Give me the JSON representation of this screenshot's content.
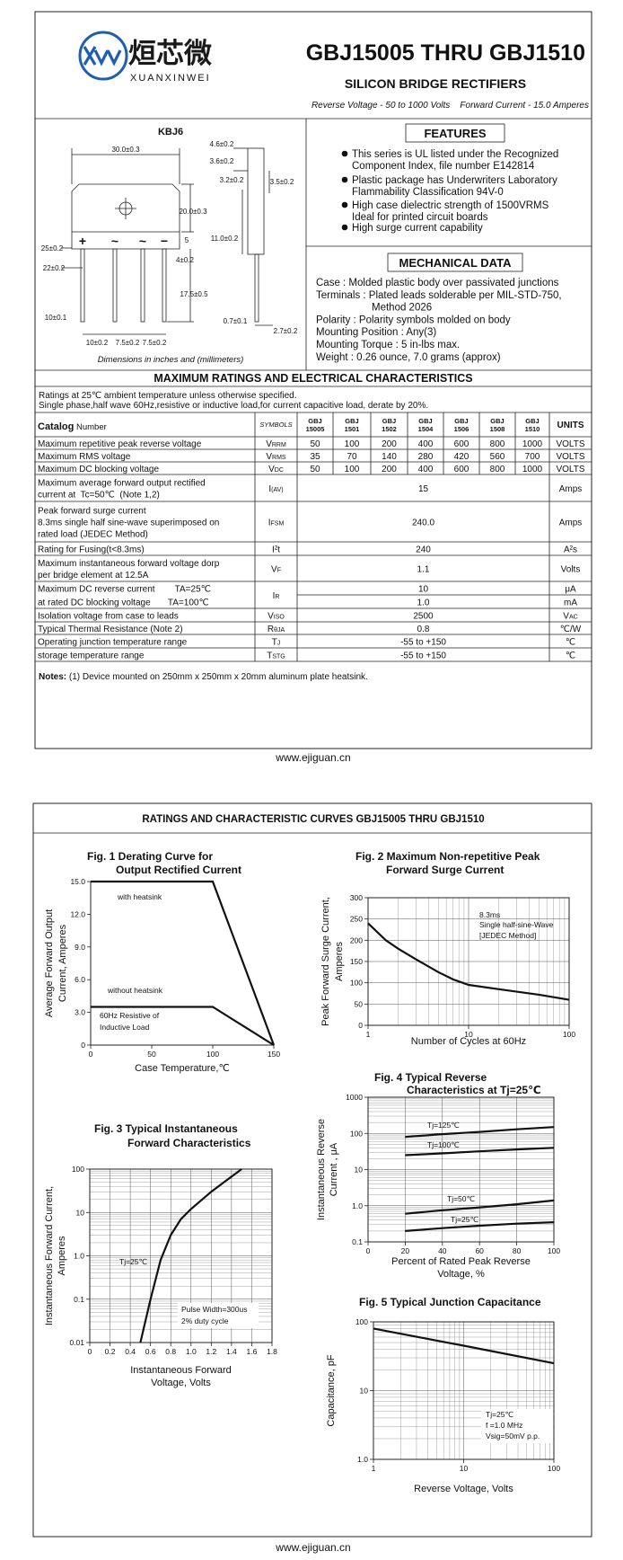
{
  "header": {
    "brand_cn": "烜芯微",
    "brand_en": "XUANXINWEI",
    "title": "GBJ15005 THRU GBJ1510",
    "subtitle": "SILICON BRIDGE RECTIFIERS",
    "ratings_line": "Reverse Voltage - 50 to 1000 Volts    Forward Current - 15.0 Amperes"
  },
  "package": {
    "name": "KBJ6",
    "dimensions": [
      "30.0±0.3",
      "20.0±0.3",
      "25±0.2",
      "22±0.2",
      "10±0.1",
      "10±0.2",
      "7.5±0.2",
      "7.5±0.2",
      "4±0.2",
      "5",
      "17.5±0.5",
      "11.0±0.2",
      "4.6±0.2",
      "3.6±0.2",
      "3.2±0.2",
      "3.5±0.2",
      "0.7±0.1",
      "2.7±0.2"
    ],
    "terminal_marks": [
      "+",
      "~",
      "~",
      "−"
    ],
    "caption": "Dimensions in inches and (millimeters)"
  },
  "features": {
    "title": "FEATURES",
    "items": [
      [
        "This series is UL listed under the Recognized",
        "Component Index, file number E142814"
      ],
      [
        "Plastic package has Underwriters Laboratory",
        "Flammability Classification 94V-0"
      ],
      [
        "High case dielectric strength of 1500VRMS",
        "Ideal for printed circuit boards"
      ],
      [
        "High surge current capability"
      ]
    ]
  },
  "mechanical": {
    "title": "MECHANICAL DATA",
    "lines": [
      "Case : Molded plastic body over passivated junctions",
      "Terminals : Plated leads solderable per MIL-STD-750,",
      "Method 2026",
      "Polarity : Polarity symbols molded on body",
      "Mounting Position : Any(3)",
      "Mounting Torque : 5 in-lbs max.",
      "Weight : 0.26 ounce, 7.0 grams (approx)"
    ]
  },
  "ratings": {
    "title": "MAXIMUM RATINGS AND ELECTRICAL CHARACTERISTICS",
    "conditions": [
      "Ratings at 25℃ ambient temperature unless otherwise specified.",
      "Single phase,half wave 60Hz,resistive or inductive load,for current capacitive load, derate by 20%."
    ],
    "table": {
      "header": {
        "catalog": "Catalog",
        "number": "Number",
        "symbols": "SYMBOLS",
        "parts": [
          [
            "GBJ",
            "15005"
          ],
          [
            "GBJ",
            "1501"
          ],
          [
            "GBJ",
            "1502"
          ],
          [
            "GBJ",
            "1504"
          ],
          [
            "GBJ",
            "1506"
          ],
          [
            "GBJ",
            "1508"
          ],
          [
            "GBJ",
            "1510"
          ]
        ],
        "units": "UNITS"
      },
      "rows": [
        {
          "desc": [
            "Maximum repetitive peak reverse voltage"
          ],
          "sym": "V",
          "sym_sub": "RRM",
          "values": [
            "50",
            "100",
            "200",
            "400",
            "600",
            "800",
            "1000"
          ],
          "units": [
            "VOLTS"
          ]
        },
        {
          "desc": [
            "Maximum RMS voltage"
          ],
          "sym": "V",
          "sym_sub": "RMS",
          "values": [
            "35",
            "70",
            "140",
            "280",
            "420",
            "560",
            "700"
          ],
          "units": [
            "VOLTS"
          ]
        },
        {
          "desc": [
            "Maximum DC blocking voltage"
          ],
          "sym": "V",
          "sym_sub": "DC",
          "values": [
            "50",
            "100",
            "200",
            "400",
            "600",
            "800",
            "1000"
          ],
          "units": [
            "VOLTS"
          ]
        },
        {
          "desc": [
            "Maximum average forward output rectified",
            "current at  Tc=50℃  (Note 1,2)"
          ],
          "sym": "I",
          "sym_sub": "(AV)",
          "values": [
            "15"
          ],
          "units": [
            "Amps"
          ]
        },
        {
          "desc": [
            "Peak forward surge current",
            "8.3ms single half sine-wave superimposed on",
            "rated load (JEDEC Method)"
          ],
          "sym": "I",
          "sym_sub": "FSM",
          "values": [
            "240.0"
          ],
          "units": [
            "Amps"
          ]
        },
        {
          "desc": [
            "Rating for Fusing(t<8.3ms)"
          ],
          "sym": "I²t",
          "values": [
            "240"
          ],
          "units": [
            "A²s"
          ]
        },
        {
          "desc": [
            "Maximum instantaneous forward voltage dorp",
            "per bridge element at 12.5A"
          ],
          "sym": "V",
          "sym_sub": "F",
          "values": [
            "1.1"
          ],
          "units": [
            "Volts"
          ]
        },
        {
          "desc": [
            "Maximum DC reverse current        TA=25℃",
            "at rated DC blocking voltage       TA=100℃"
          ],
          "sym": "I",
          "sym_sub": "R",
          "values": [
            "10",
            "1.0"
          ],
          "units": [
            "μA",
            "mA"
          ]
        },
        {
          "desc": [
            "Isolation voltage from case to leads"
          ],
          "sym": "V",
          "sym_sub": "ISO",
          "values": [
            "2500"
          ],
          "units": [
            "V"
          ],
          "unit_sub": "AC"
        },
        {
          "desc": [
            "Typical Thermal Resistance (Note 2)"
          ],
          "sym": "R",
          "sym_sub": "θJA",
          "values": [
            "0.8"
          ],
          "units": [
            "℃/W"
          ]
        },
        {
          "desc": [
            "Operating junction temperature range"
          ],
          "sym": "T",
          "sym_sub": "J",
          "values": [
            "-55 to +150"
          ],
          "units": [
            "℃"
          ]
        },
        {
          "desc": [
            "storage temperature range"
          ],
          "sym": "T",
          "sym_sub": "STG",
          "values": [
            "-55 to +150"
          ],
          "units": [
            "℃"
          ]
        }
      ]
    }
  },
  "notes": {
    "label": "Notes:",
    "text": " (1) Device mounted on 250mm x 250mm x 20mm aluminum plate heatsink."
  },
  "footers": [
    "www.ejiguan.cn",
    "www.ejiguan.cn"
  ],
  "curves_title": "RATINGS AND CHARACTERISTIC CURVES GBJ15005 THRU GBJ1510",
  "chart_data": [
    {
      "type": "line",
      "title": [
        "Fig. 1 Derating Curve for",
        "Output Rectified Current"
      ],
      "xlabel": [
        "Case Temperature,℃"
      ],
      "ylabel": [
        "Average Forward Output",
        "Current, Amperes"
      ],
      "xlim": [
        0,
        150
      ],
      "ylim": [
        0,
        15
      ],
      "xticks": [
        0,
        50,
        100,
        150
      ],
      "yticks": [
        0,
        {
          "value": 3,
          "label": "3.0"
        },
        {
          "value": 6,
          "label": "6.0"
        },
        {
          "value": 9,
          "label": "9.0"
        },
        {
          "value": 12,
          "label": "12.0"
        },
        {
          "value": 15,
          "label": "15.0"
        }
      ],
      "grid": false,
      "frame": "axes",
      "series": [
        {
          "name": "with heatsink",
          "color": "#111111",
          "x": [
            0,
            100,
            150
          ],
          "values": [
            15,
            15,
            0
          ]
        },
        {
          "name": "without heatsink",
          "color": "#111111",
          "x": [
            0,
            100,
            150
          ],
          "values": [
            3.5,
            3.5,
            0
          ]
        }
      ],
      "annotations": [
        "60Hz Resistive of",
        "Inductive Load"
      ]
    },
    {
      "type": "line",
      "title": [
        "Fig. 2 Maximum Non-repetitive Peak",
        "Forward Surge Current"
      ],
      "xlabel": [
        "Number of Cycles at 60Hz"
      ],
      "ylabel": [
        "Peak Forward Surge Current,",
        "Amperes"
      ],
      "xlim": [
        1,
        100
      ],
      "ylim": [
        0,
        300
      ],
      "xscale": "log",
      "xticks": [
        1,
        10,
        100
      ],
      "yticks": [
        0,
        50,
        100,
        150,
        200,
        250,
        300
      ],
      "grid": true,
      "frame": "box",
      "series": [
        {
          "color": "#111111",
          "x": [
            1,
            1.5,
            2,
            3,
            5,
            7,
            10,
            20,
            50,
            100
          ],
          "values": [
            240,
            200,
            180,
            155,
            125,
            108,
            95,
            85,
            72,
            60
          ]
        }
      ],
      "annotations": [
        "8.3ms",
        "Single half-sine-Wave",
        "[JEDEC Method]"
      ]
    },
    {
      "type": "line",
      "title": [
        "Fig. 3 Typical Instantaneous",
        "Forward Characteristics"
      ],
      "xlabel": [
        "Instantaneous Forward",
        "Voltage, Volts"
      ],
      "ylabel": [
        "Instantaneous Forward Current,",
        "Amperes"
      ],
      "xlim": [
        0,
        1.8
      ],
      "ylim": [
        0.01,
        100
      ],
      "yscale": "log",
      "xticks": [
        0,
        0.2,
        0.4,
        0.6,
        0.8,
        {
          "value": 1,
          "label": "1.0"
        },
        1.2,
        1.4,
        1.6,
        1.8
      ],
      "yticks": [
        0.01,
        0.1,
        {
          "value": 1,
          "label": "1.0"
        },
        10,
        100
      ],
      "grid": true,
      "frame": "box",
      "series": [
        {
          "name": "Tj=25℃",
          "color": "#111111",
          "x": [
            0.5,
            0.6,
            0.7,
            0.8,
            0.9,
            1.0,
            1.2,
            1.5
          ],
          "values": [
            0.01,
            0.1,
            0.8,
            3,
            7,
            12,
            30,
            100
          ]
        }
      ],
      "annotations": [
        "Pulse Width=300us",
        "2% duty cycle"
      ]
    },
    {
      "type": "line",
      "title": [
        "Fig. 4 Typical Reverse",
        "Characteristics at Tj=25℃"
      ],
      "xlabel": [
        "Percent of Rated Peak Reverse",
        "Voltage, %"
      ],
      "ylabel": [
        "Instantaneous Reverse",
        "Current , μA"
      ],
      "xlim": [
        0,
        100
      ],
      "ylim": [
        0.1,
        1000
      ],
      "yscale": "log",
      "xticks": [
        0,
        20,
        40,
        60,
        80,
        100
      ],
      "yticks": [
        0.1,
        {
          "value": 1,
          "label": "1.0"
        },
        10,
        100,
        1000
      ],
      "grid": true,
      "frame": "box",
      "series": [
        {
          "name": "Tj=125℃",
          "color": "#111111",
          "x": [
            20,
            40,
            60,
            80,
            100
          ],
          "values": [
            80,
            95,
            110,
            130,
            150
          ]
        },
        {
          "name": "Tj=100℃",
          "color": "#111111",
          "x": [
            20,
            40,
            60,
            80,
            100
          ],
          "values": [
            25,
            28,
            32,
            36,
            40
          ]
        },
        {
          "name": "Tj=50℃",
          "color": "#111111",
          "x": [
            20,
            40,
            60,
            80,
            100
          ],
          "values": [
            0.6,
            0.75,
            0.9,
            1.1,
            1.4
          ]
        },
        {
          "name": "Tj=25℃",
          "color": "#111111",
          "x": [
            20,
            40,
            60,
            80,
            100
          ],
          "values": [
            0.2,
            0.24,
            0.28,
            0.32,
            0.35
          ]
        }
      ],
      "annotations": []
    },
    {
      "type": "line",
      "title": [
        "Fig. 5 Typical Junction Capacitance"
      ],
      "xlabel": [
        "Reverse Voltage, Volts"
      ],
      "ylabel": [
        "Capacitance, pF"
      ],
      "xlim": [
        1,
        100
      ],
      "ylim": [
        1,
        100
      ],
      "xscale": "log",
      "yscale": "log",
      "xticks": [
        1,
        10,
        100
      ],
      "yticks": [
        {
          "value": 1,
          "label": "1.0"
        },
        10,
        100
      ],
      "grid": true,
      "frame": "box",
      "series": [
        {
          "color": "#111111",
          "x": [
            1,
            10,
            100
          ],
          "values": [
            80,
            45,
            25
          ]
        }
      ],
      "annotations": [
        "Tj=25℃",
        "f =1.0 MHz",
        "Vsig=50mV p.p."
      ]
    }
  ]
}
